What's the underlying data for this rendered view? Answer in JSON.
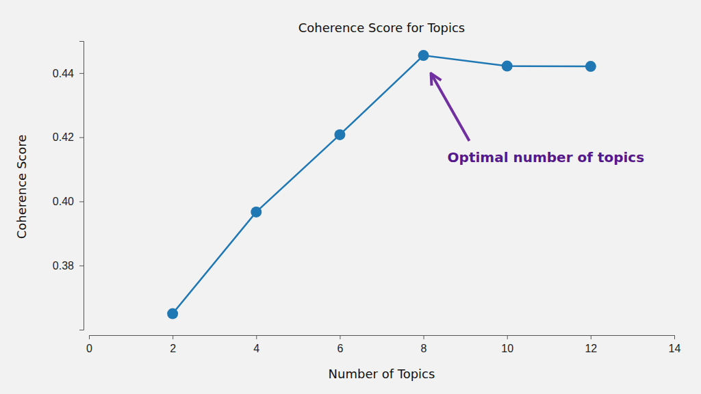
{
  "chart_data": {
    "type": "line",
    "title": "Coherence Score for Topics",
    "x_label": "Number of Topics",
    "y_label": "Coherence Score",
    "x": [
      2,
      4,
      6,
      8,
      10,
      12
    ],
    "values": [
      0.365,
      0.3967,
      0.4208,
      0.4455,
      0.4422,
      0.4421
    ],
    "color": "#1f77b4",
    "marker": "circle",
    "line_style": "solid",
    "xlim": [
      0,
      14
    ],
    "xticks": [
      0,
      2,
      4,
      6,
      8,
      10,
      12,
      14
    ],
    "ylim": [
      0.36,
      0.45
    ],
    "yticks": [
      0.38,
      {
        "value": 0.4,
        "label": "0.40"
      },
      0.42,
      0.44
    ],
    "grid": false,
    "annotations": [
      {
        "text": "Optimal number of topics",
        "x": 8,
        "y": 0.4455
      }
    ]
  }
}
